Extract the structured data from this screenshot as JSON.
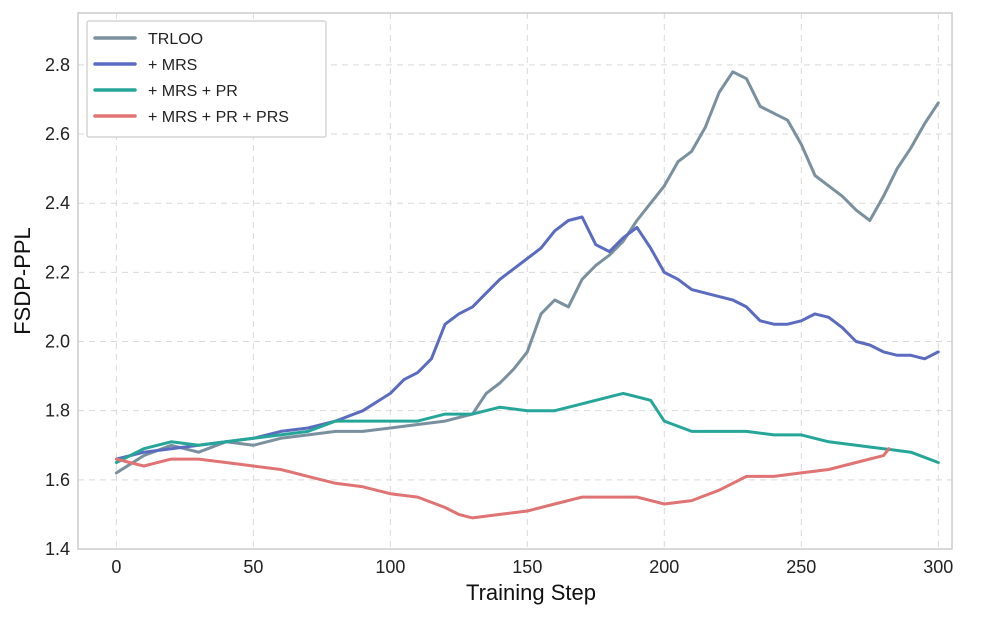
{
  "chart_data": {
    "type": "line",
    "title": "",
    "xlabel": "Training Step",
    "ylabel": "FSDP-PPL",
    "xlim": [
      -14,
      305
    ],
    "ylim": [
      1.4,
      2.95
    ],
    "xticks": [
      0,
      50,
      100,
      150,
      200,
      250,
      300
    ],
    "yticks": [
      1.4,
      1.6,
      1.8,
      2.0,
      2.2,
      2.4,
      2.6,
      2.8
    ],
    "xtick_labels": [
      "0",
      "50",
      "100",
      "150",
      "200",
      "250",
      "300"
    ],
    "ytick_labels": [
      "1.4",
      "1.6",
      "1.8",
      "2.0",
      "2.2",
      "2.4",
      "2.6",
      "2.8"
    ],
    "grid": true,
    "legend_position": "top-left",
    "series": [
      {
        "name": "TRLOO",
        "color": "#7a909f",
        "x": [
          0,
          10,
          20,
          30,
          40,
          50,
          60,
          70,
          80,
          90,
          100,
          110,
          120,
          130,
          135,
          140,
          145,
          150,
          155,
          160,
          165,
          170,
          175,
          180,
          185,
          190,
          195,
          200,
          205,
          210,
          215,
          220,
          225,
          230,
          235,
          240,
          245,
          250,
          255,
          260,
          265,
          270,
          275,
          280,
          285,
          290,
          295,
          300
        ],
        "values": [
          1.62,
          1.67,
          1.7,
          1.68,
          1.71,
          1.7,
          1.72,
          1.73,
          1.74,
          1.74,
          1.75,
          1.76,
          1.77,
          1.79,
          1.85,
          1.88,
          1.92,
          1.97,
          2.08,
          2.12,
          2.1,
          2.18,
          2.22,
          2.25,
          2.29,
          2.35,
          2.4,
          2.45,
          2.52,
          2.55,
          2.62,
          2.72,
          2.78,
          2.76,
          2.68,
          2.66,
          2.64,
          2.57,
          2.48,
          2.45,
          2.42,
          2.38,
          2.35,
          2.42,
          2.5,
          2.56,
          2.63,
          2.69
        ]
      },
      {
        "name": "+ MRS",
        "color": "#5b6bbf",
        "x": [
          0,
          10,
          20,
          30,
          40,
          50,
          60,
          70,
          80,
          90,
          100,
          105,
          110,
          115,
          120,
          125,
          130,
          135,
          140,
          145,
          150,
          155,
          160,
          165,
          170,
          175,
          180,
          185,
          190,
          195,
          200,
          205,
          210,
          215,
          220,
          225,
          230,
          235,
          240,
          245,
          250,
          255,
          260,
          265,
          270,
          275,
          280,
          285,
          290,
          295,
          300
        ],
        "values": [
          1.66,
          1.68,
          1.69,
          1.7,
          1.71,
          1.72,
          1.74,
          1.75,
          1.77,
          1.8,
          1.85,
          1.89,
          1.91,
          1.95,
          2.05,
          2.08,
          2.1,
          2.14,
          2.18,
          2.21,
          2.24,
          2.27,
          2.32,
          2.35,
          2.36,
          2.28,
          2.26,
          2.3,
          2.33,
          2.27,
          2.2,
          2.18,
          2.15,
          2.14,
          2.13,
          2.12,
          2.1,
          2.06,
          2.05,
          2.05,
          2.06,
          2.08,
          2.07,
          2.04,
          2.0,
          1.99,
          1.97,
          1.96,
          1.96,
          1.95,
          1.97
        ]
      },
      {
        "name": "+ MRS + PR",
        "color": "#26a699",
        "x": [
          0,
          10,
          20,
          30,
          40,
          50,
          60,
          70,
          80,
          90,
          100,
          110,
          120,
          130,
          140,
          150,
          160,
          170,
          180,
          185,
          190,
          195,
          200,
          210,
          220,
          230,
          240,
          250,
          260,
          270,
          280,
          290,
          300
        ],
        "values": [
          1.65,
          1.69,
          1.71,
          1.7,
          1.71,
          1.72,
          1.73,
          1.74,
          1.77,
          1.77,
          1.77,
          1.77,
          1.79,
          1.79,
          1.81,
          1.8,
          1.8,
          1.82,
          1.84,
          1.85,
          1.84,
          1.83,
          1.77,
          1.74,
          1.74,
          1.74,
          1.73,
          1.73,
          1.71,
          1.7,
          1.69,
          1.68,
          1.65
        ]
      },
      {
        "name": "+ MRS + PR + PRS",
        "color": "#e07373",
        "x": [
          0,
          10,
          20,
          30,
          40,
          50,
          60,
          70,
          80,
          90,
          100,
          110,
          120,
          125,
          130,
          140,
          150,
          160,
          170,
          180,
          190,
          200,
          210,
          220,
          230,
          240,
          250,
          260,
          270,
          280,
          282
        ],
        "values": [
          1.66,
          1.64,
          1.66,
          1.66,
          1.65,
          1.64,
          1.63,
          1.61,
          1.59,
          1.58,
          1.56,
          1.55,
          1.52,
          1.5,
          1.49,
          1.5,
          1.51,
          1.53,
          1.55,
          1.55,
          1.55,
          1.53,
          1.54,
          1.57,
          1.61,
          1.61,
          1.62,
          1.63,
          1.65,
          1.67,
          1.69
        ]
      }
    ]
  }
}
